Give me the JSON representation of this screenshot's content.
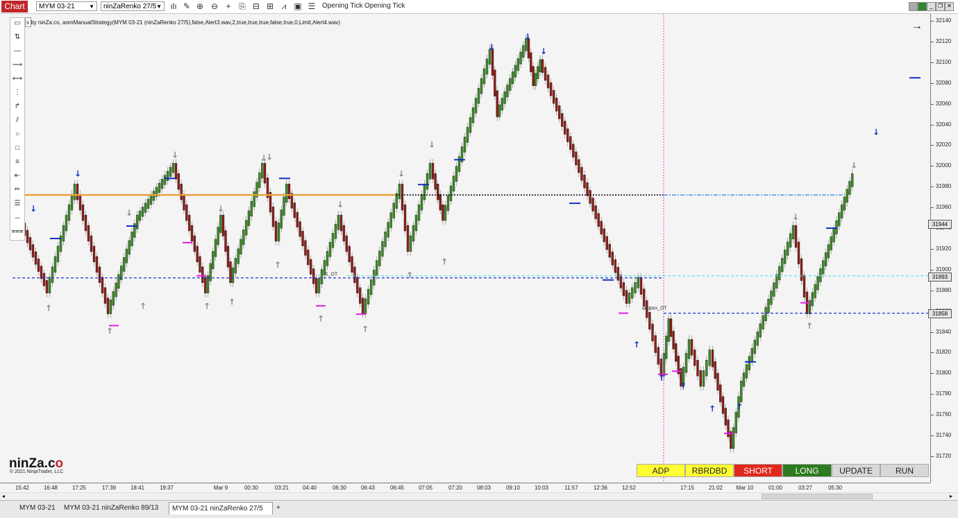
{
  "toolbar": {
    "chart_label": "Chart",
    "instrument": "MYM 03-21",
    "bar_type": "ninZaRenko 27/5",
    "tick_label_1": "Opening Tick",
    "tick_label_2": "Opening Tick",
    "icons": [
      "bars-icon",
      "pencil-icon",
      "zoom-in-icon",
      "zoom-out-icon",
      "crosshair-icon",
      "properties-icon",
      "templates-icon",
      "data-box-icon",
      "strategy-icon",
      "indicators-icon",
      "list-icon"
    ]
  },
  "indicator_label": "s by ninZa.co, aomManualStrategy(MYM 03-21 (ninZaRenko 27/5),false,Alert3.wav,2,true,true,true,false,true,0,Limit,Alert4.wav)",
  "line_labels": {
    "level_a": "S_OT",
    "level_b": "Globex_OT"
  },
  "price_axis": {
    "ticks": [
      "32140",
      "32120",
      "32100",
      "32080",
      "32060",
      "32040",
      "32020",
      "32000",
      "31980",
      "31960",
      "31940",
      "31920",
      "31900",
      "31880",
      "31860",
      "31840",
      "31820",
      "31800",
      "31780",
      "31760",
      "31740",
      "31720"
    ],
    "flags": [
      "31944",
      "31893",
      "31858"
    ]
  },
  "time_axis": [
    "15:42",
    "16:48",
    "17:25",
    "17:39",
    "18:41",
    "19:37",
    "Mar 9",
    "00:30",
    "03:21",
    "04:40",
    "06:30",
    "06:43",
    "06:45",
    "07:05",
    "07:20",
    "08:03",
    "09:10",
    "10:03",
    "11:57",
    "12:36",
    "12:52",
    "17:15",
    "21:02",
    "Mar 10",
    "01:00",
    "03:27",
    "05:30"
  ],
  "buttons": [
    {
      "label": "ADP",
      "color": "#ffff33",
      "text": "#222"
    },
    {
      "label": "RBRDBD",
      "color": "#ffff33",
      "text": "#222"
    },
    {
      "label": "SHORT",
      "color": "#e0281c",
      "text": "#ffffff"
    },
    {
      "label": "LONG",
      "color": "#2d7a1f",
      "text": "#ffffff"
    },
    {
      "label": "UPDATE",
      "color": "#d8d8d8",
      "text": "#222"
    },
    {
      "label": "RUN",
      "color": "#d8d8d8",
      "text": "#222"
    }
  ],
  "logo": {
    "prefix": "ninZa.c",
    "suffix": "o",
    "copyright": "© 2021 NinjaTrader, LLC"
  },
  "tabs": [
    "MYM 03-21",
    "MYM 03-21 ninZaRenko 89/13",
    "MYM 03-21 ninZaRenko 27/5",
    "+"
  ],
  "colors": {
    "up_bar": "#3f8a2a",
    "down_bar": "#8b1f1a",
    "orange_line": "#e8a23c",
    "blue_dash": "#1f2fd0",
    "cyan_dash": "#5ee0f0"
  }
}
